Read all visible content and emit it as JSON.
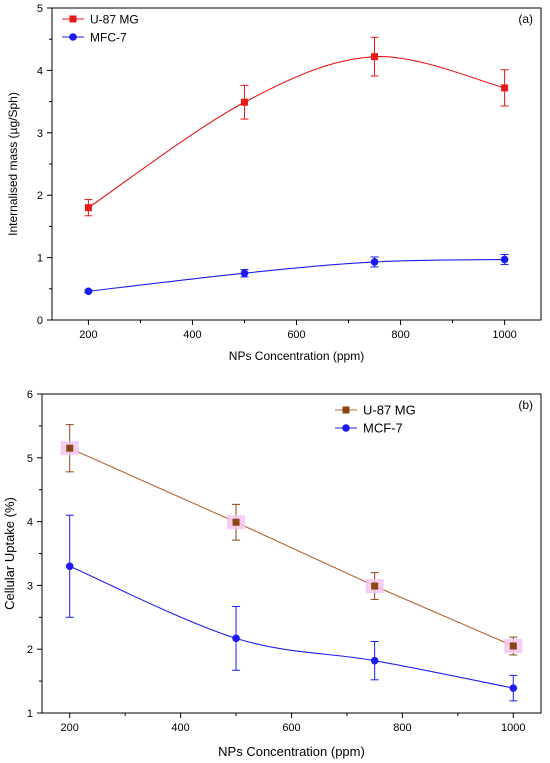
{
  "chart_data": [
    {
      "type": "line",
      "panel_label": "(a)",
      "xlabel": "NPs Concentration (ppm)",
      "ylabel": "Internalised mass (µg/Sph)",
      "xlim": [
        130,
        1070
      ],
      "ylim": [
        0,
        5
      ],
      "xticks": [
        "200",
        "400",
        "600",
        "800",
        "1000"
      ],
      "yticks": [
        "0",
        "1",
        "2",
        "3",
        "4",
        "5"
      ],
      "legend_position": "top-left",
      "grid": false,
      "x": [
        200,
        500,
        750,
        1000
      ],
      "series": [
        {
          "name": "U-87 MG",
          "color": "#e8191b",
          "marker": "square",
          "values": [
            1.8,
            3.49,
            4.22,
            3.72
          ],
          "errors": [
            0.13,
            0.27,
            0.31,
            0.29
          ],
          "fit": "smooth-curve"
        },
        {
          "name": "MFC-7",
          "color": "#1c1cf0",
          "marker": "circle",
          "values": [
            0.46,
            0.75,
            0.93,
            0.97
          ],
          "errors": [
            0.02,
            0.06,
            0.08,
            0.08
          ],
          "fit": "smooth-curve"
        }
      ]
    },
    {
      "type": "line",
      "panel_label": "(b)",
      "xlabel": "NPs Concentration (ppm)",
      "ylabel": "Cellular Uptake (%)",
      "xlim": [
        150,
        1050
      ],
      "ylim": [
        1,
        6
      ],
      "xticks": [
        "200",
        "400",
        "600",
        "800",
        "1000"
      ],
      "yticks": [
        "1",
        "2",
        "3",
        "4",
        "5",
        "6"
      ],
      "legend_position": "top-right",
      "grid": false,
      "x": [
        200,
        500,
        750,
        1000
      ],
      "series": [
        {
          "name": "U-87 MG",
          "color": "#8b4513",
          "line_color": "#b8663a",
          "marker": "square",
          "values": [
            5.15,
            3.99,
            2.99,
            2.05
          ],
          "errors": [
            0.37,
            0.28,
            0.21,
            0.14
          ],
          "fit": "straight-line"
        },
        {
          "name": "MCF-7",
          "color": "#1c1cf0",
          "marker": "circle",
          "values": [
            3.3,
            2.17,
            1.82,
            1.39
          ],
          "errors": [
            0.8,
            0.5,
            0.3,
            0.2
          ],
          "fit": "smooth-curve"
        }
      ]
    }
  ]
}
